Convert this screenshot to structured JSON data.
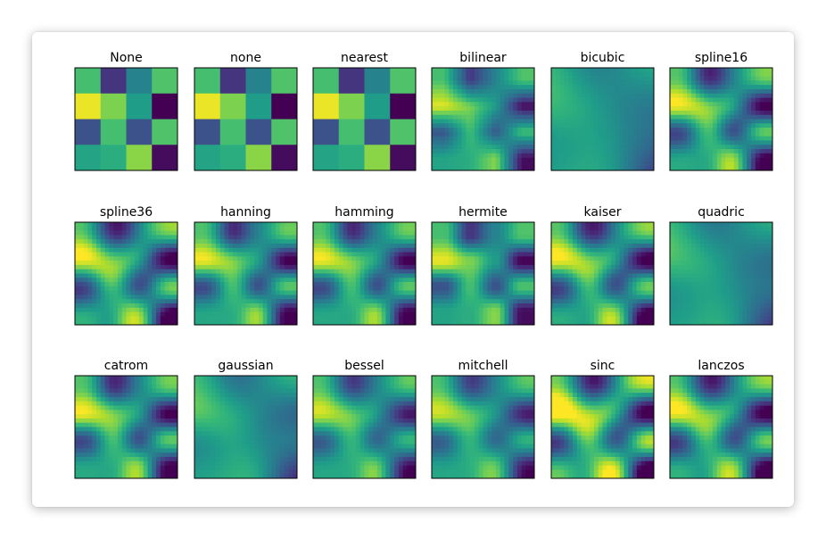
{
  "chart_data": {
    "type": "heatmap",
    "title": "",
    "colormap": "viridis",
    "vmin": 0,
    "vmax": 1,
    "grid_rows": 3,
    "grid_cols": 6,
    "matrix": [
      [
        0.7,
        0.15,
        0.45,
        0.72
      ],
      [
        0.97,
        0.8,
        0.55,
        0.0
      ],
      [
        0.25,
        0.7,
        0.25,
        0.72
      ],
      [
        0.58,
        0.62,
        0.82,
        0.03
      ]
    ],
    "methods": [
      "None",
      "none",
      "nearest",
      "bilinear",
      "bicubic",
      "spline16",
      "spline36",
      "hanning",
      "hamming",
      "hermite",
      "kaiser",
      "quadric",
      "catrom",
      "gaussian",
      "bessel",
      "mitchell",
      "sinc",
      "lanczos"
    ],
    "xlabel": "",
    "ylabel": "",
    "ticks": "off"
  }
}
